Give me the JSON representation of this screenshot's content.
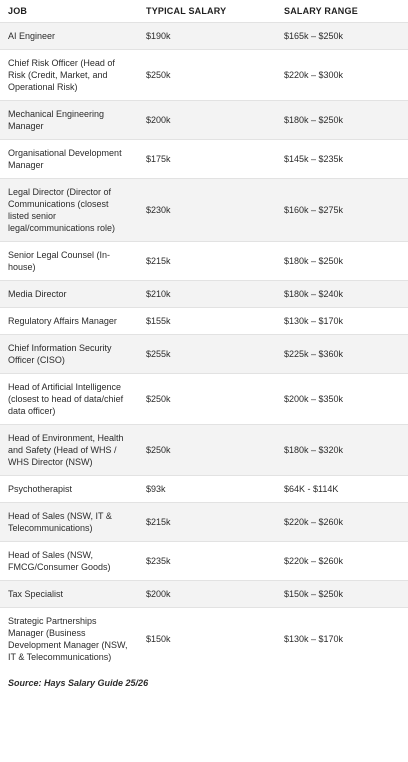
{
  "table": {
    "headers": [
      "JOB",
      "TYPICAL SALARY",
      "SALARY RANGE"
    ],
    "rows": [
      {
        "job": "AI Engineer",
        "typical": "$190k",
        "range": "$165k – $250k"
      },
      {
        "job": "Chief Risk Officer (Head of Risk (Credit, Market, and Operational Risk)",
        "typical": "$250k",
        "range": "$220k – $300k"
      },
      {
        "job": "Mechanical Engineering Manager",
        "typical": "$200k",
        "range": "$180k – $250k"
      },
      {
        "job": "Organisational Development Manager",
        "typical": "$175k",
        "range": "$145k – $235k"
      },
      {
        "job": "Legal Director (Director of Communications (closest listed senior legal/communications role)",
        "typical": "$230k",
        "range": "$160k – $275k"
      },
      {
        "job": "Senior Legal Counsel (In-house)",
        "typical": "$215k",
        "range": "$180k – $250k"
      },
      {
        "job": "Media Director",
        "typical": "$210k",
        "range": "$180k – $240k"
      },
      {
        "job": "Regulatory Affairs Manager",
        "typical": "$155k",
        "range": "$130k – $170k"
      },
      {
        "job": "Chief Information Security Officer (CISO)",
        "typical": "$255k",
        "range": "$225k – $360k"
      },
      {
        "job": "Head of Artificial Intelligence (closest to head of data/chief data officer)",
        "typical": "$250k",
        "range": "$200k – $350k"
      },
      {
        "job": "Head of Environment, Health and Safety (Head of WHS / WHS Director (NSW)",
        "typical": "$250k",
        "range": "$180k – $320k"
      },
      {
        "job": "Psychotherapist",
        "typical": "$93k",
        "range": "$64K - $114K"
      },
      {
        "job": "Head of Sales (NSW, IT & Telecommunications)",
        "typical": "$215k",
        "range": "$220k – $260k"
      },
      {
        "job": "Head of Sales (NSW, FMCG/Consumer Goods)",
        "typical": "$235k",
        "range": "$220k – $260k"
      },
      {
        "job": "Tax Specialist",
        "typical": "$200k",
        "range": "$150k – $250k"
      },
      {
        "job": "Strategic Partnerships Manager (Business Development Manager (NSW, IT & Telecommunications)",
        "typical": "$150k",
        "range": "$130k – $170k"
      }
    ]
  },
  "source": "Source: Hays Salary Guide 25/26"
}
